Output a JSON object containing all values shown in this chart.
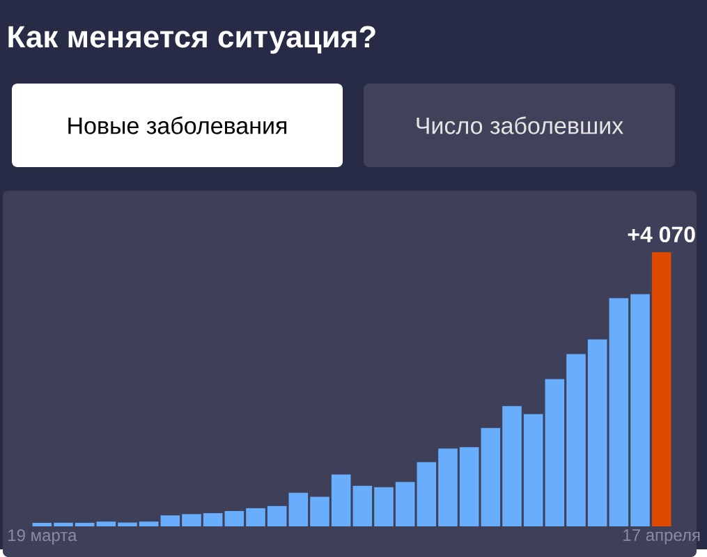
{
  "chart_data": {
    "type": "bar",
    "title": "Как меняется ситуация?",
    "annotations": [
      "Новые заболевания",
      "Число заболевших"
    ],
    "categories": [
      "19 марта",
      null,
      null,
      null,
      null,
      null,
      null,
      null,
      null,
      null,
      null,
      null,
      null,
      null,
      null,
      null,
      null,
      null,
      null,
      null,
      null,
      null,
      null,
      null,
      null,
      null,
      null,
      null,
      null,
      "17 апреля"
    ],
    "values": [
      52,
      54,
      53,
      71,
      57,
      71,
      163,
      182,
      196,
      228,
      270,
      302,
      500,
      440,
      771,
      601,
      582,
      658,
      954,
      1154,
      1175,
      1459,
      1786,
      1667,
      2186,
      2558,
      2774,
      3388,
      3448,
      4070
    ],
    "colors": [
      "#69aefc",
      "#69aefc",
      "#69aefc",
      "#69aefc",
      "#69aefc",
      "#69aefc",
      "#69aefc",
      "#69aefc",
      "#69aefc",
      "#69aefc",
      "#69aefc",
      "#69aefc",
      "#69aefc",
      "#69aefc",
      "#69aefc",
      "#69aefc",
      "#69aefc",
      "#69aefc",
      "#69aefc",
      "#69aefc",
      "#69aefc",
      "#69aefc",
      "#69aefc",
      "#69aefc",
      "#69aefc",
      "#69aefc",
      "#69aefc",
      "#69aefc",
      "#69aefc",
      "#e04a00"
    ],
    "value_labels": [
      null,
      null,
      null,
      null,
      null,
      null,
      null,
      null,
      null,
      null,
      null,
      null,
      null,
      null,
      null,
      null,
      null,
      null,
      null,
      null,
      null,
      null,
      null,
      null,
      null,
      null,
      null,
      null,
      null,
      "+4 070"
    ]
  }
}
